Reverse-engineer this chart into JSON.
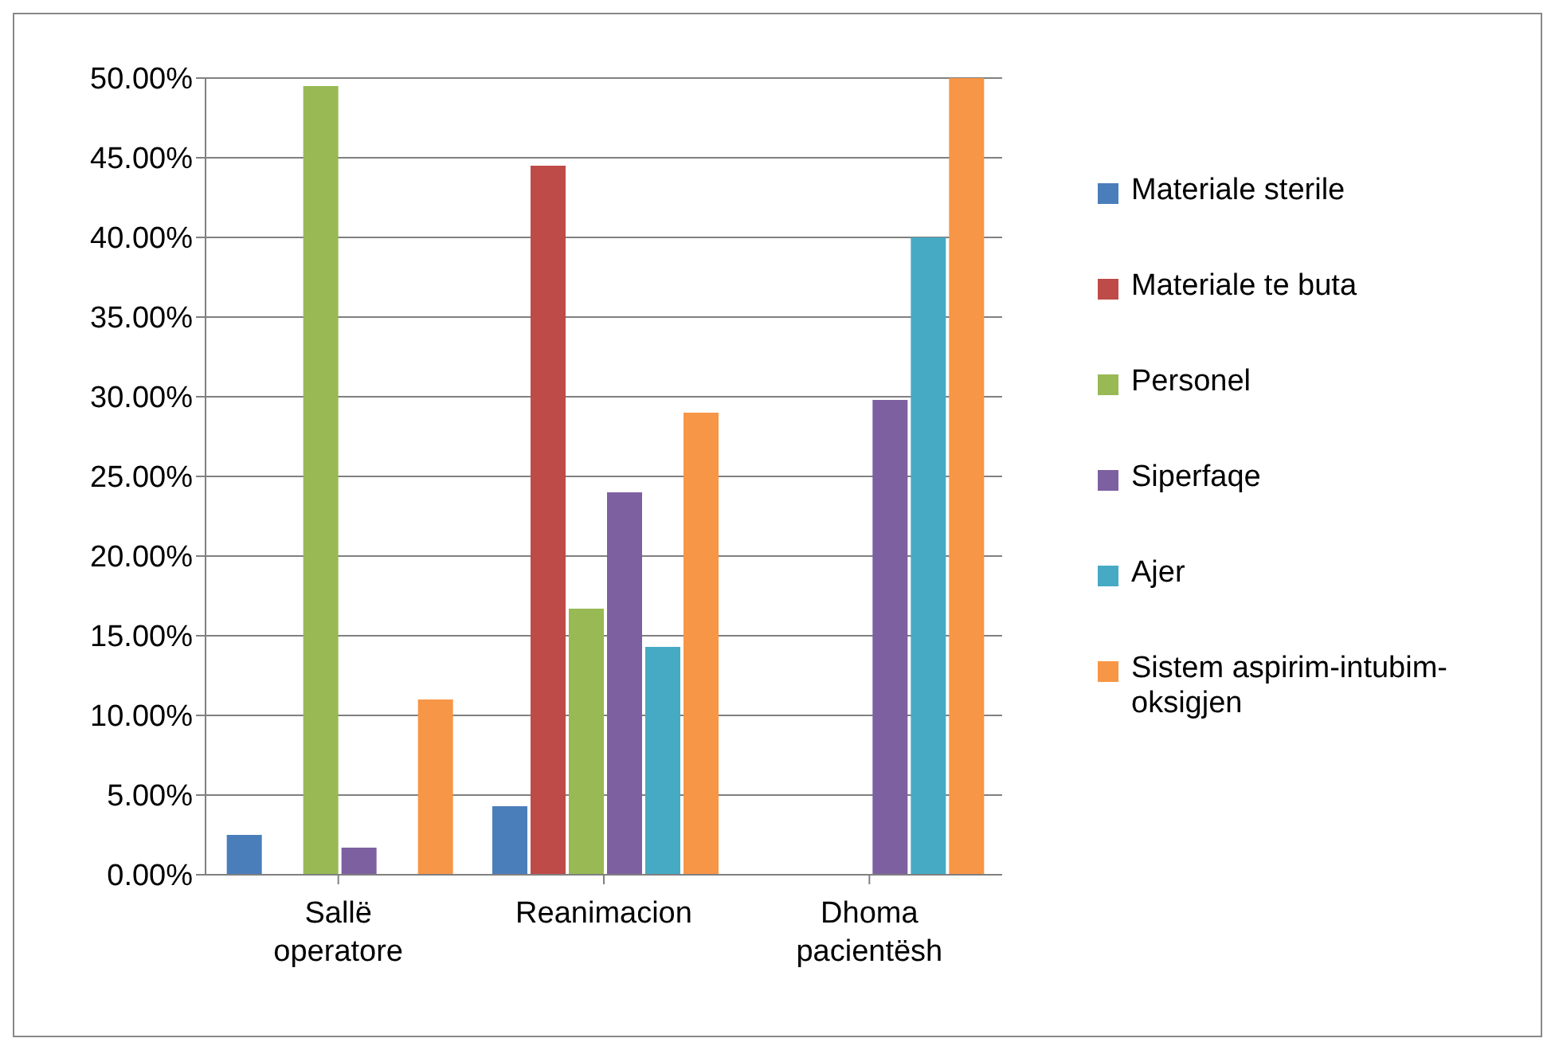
{
  "chart_data": {
    "type": "bar",
    "categories": [
      "Sallë operatore",
      "Reanimacion",
      "Dhoma pacientësh"
    ],
    "series": [
      {
        "name": "Materiale sterile",
        "color": "#4a7ebb",
        "values": [
          2.5,
          4.3,
          0
        ]
      },
      {
        "name": "Materiale te buta",
        "color": "#be4b48",
        "values": [
          0,
          44.5,
          0
        ]
      },
      {
        "name": "Personel",
        "color": "#98b954",
        "values": [
          49.5,
          16.7,
          0
        ]
      },
      {
        "name": "Siperfaqe",
        "color": "#7d60a0",
        "values": [
          1.7,
          24,
          29.8
        ]
      },
      {
        "name": "Ajer",
        "color": "#46aac5",
        "values": [
          0,
          14.3,
          40
        ]
      },
      {
        "name": "Sistem aspirim-intubim-oksigjen",
        "color": "#f79646",
        "values": [
          11,
          29,
          50
        ]
      }
    ],
    "ylim": [
      0,
      50
    ],
    "yticks": [
      {
        "value": 0,
        "label": "0.00%"
      },
      {
        "value": 5,
        "label": "5.00%"
      },
      {
        "value": 10,
        "label": "10.00%"
      },
      {
        "value": 15,
        "label": "15.00%"
      },
      {
        "value": 20,
        "label": "20.00%"
      },
      {
        "value": 25,
        "label": "25.00%"
      },
      {
        "value": 30,
        "label": "30.00%"
      },
      {
        "value": 35,
        "label": "35.00%"
      },
      {
        "value": 40,
        "label": "40.00%"
      },
      {
        "value": 45,
        "label": "45.00%"
      },
      {
        "value": 50,
        "label": "50.00%"
      }
    ],
    "grid": "y",
    "legend": "right"
  }
}
